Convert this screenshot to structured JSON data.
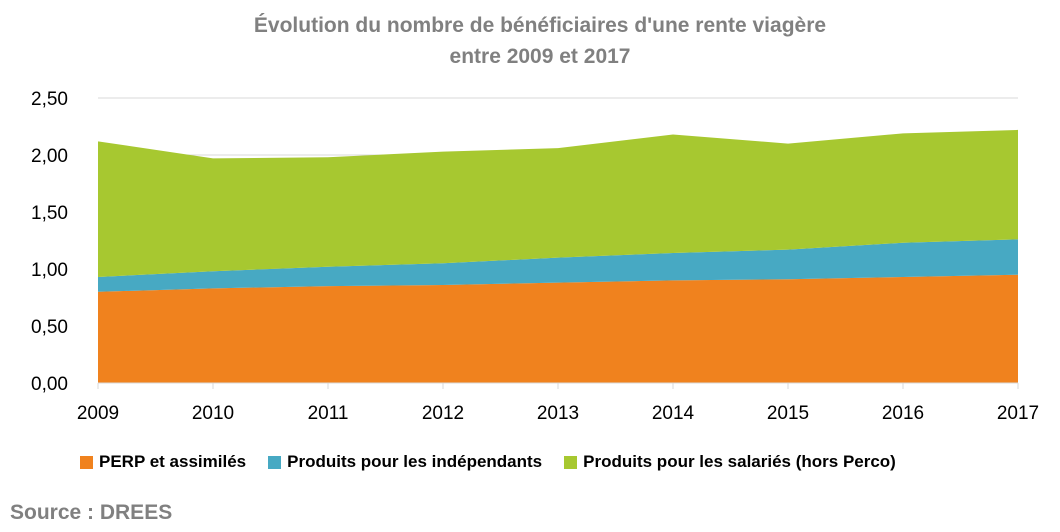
{
  "chart_data": {
    "type": "area",
    "stacked": true,
    "title": "Évolution du nombre de bénéficiaires d'une rente viagère",
    "subtitle": "entre 2009 et 2017",
    "xlabel": "",
    "ylabel": "",
    "categories": [
      "2009",
      "2010",
      "2011",
      "2012",
      "2013",
      "2014",
      "2015",
      "2016",
      "2017"
    ],
    "ylim": [
      0,
      2.5
    ],
    "yticks": [
      "0,00",
      "0,50",
      "1,00",
      "1,50",
      "2,00",
      "2,50"
    ],
    "grid": true,
    "legend_position": "bottom",
    "series": [
      {
        "name": "PERP et assimilés",
        "color": "#f0821e",
        "values": [
          0.8,
          0.83,
          0.85,
          0.86,
          0.88,
          0.9,
          0.91,
          0.93,
          0.95
        ]
      },
      {
        "name": "Produits pour les indépendants",
        "color": "#47a9c3",
        "values": [
          0.13,
          0.15,
          0.17,
          0.19,
          0.22,
          0.24,
          0.26,
          0.3,
          0.31
        ]
      },
      {
        "name": "Produits pour les salariés (hors Perco)",
        "color": "#a7c830",
        "values": [
          1.19,
          0.99,
          0.96,
          0.98,
          0.96,
          1.04,
          0.93,
          0.96,
          0.96
        ]
      }
    ]
  },
  "source": "Source : DREES"
}
